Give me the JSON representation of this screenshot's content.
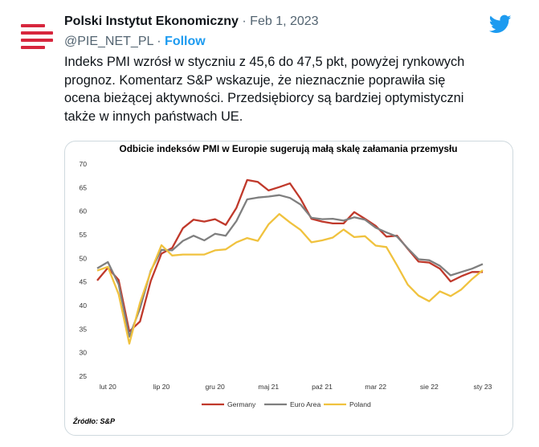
{
  "tweet": {
    "author_name": "Polski Instytut Ekonomiczny",
    "separator": "·",
    "date": "Feb 1, 2023",
    "handle": "@PIE_NET_PL",
    "follow_label": "Follow",
    "text": "Indeks PMI wzrósł w styczniu z 45,6 do 47,5 pkt, powyżej rynkowych\nprognoz. Komentarz S&P wskazuje, że nieznacznie poprawiła się\nocena bieżącej aktywności. Przedsiębiorcy są bardziej optymistyczni\ntakże w innych państwach UE.",
    "logo_icon": "twitter-bird-icon",
    "avatar_icon": "pie-logo-icon",
    "colors": {
      "accent": "#1d9bf0",
      "logo_red": "#d7263d",
      "muted": "#536471"
    }
  },
  "chart_data": {
    "type": "line",
    "title": "Odbicie indeksów PMI w Europie sugerują małą skalę załamania przemysłu",
    "source": "Źródło: S&P",
    "x_tick_labels": [
      "lut 20",
      "lip 20",
      "gru 20",
      "maj 21",
      "paź 21",
      "mar 22",
      "sie 22",
      "sty 23"
    ],
    "y_ticks": [
      25,
      30,
      35,
      40,
      45,
      50,
      55,
      60,
      65,
      70
    ],
    "ylim": [
      25,
      70
    ],
    "grid": false,
    "legend_position": "bottom",
    "x": [
      "sty 20",
      "lut 20",
      "mar 20",
      "kwi 20",
      "maj 20",
      "cze 20",
      "lip 20",
      "sie 20",
      "wrz 20",
      "paź 20",
      "lis 20",
      "gru 20",
      "sty 21",
      "lut 21",
      "mar 21",
      "kwi 21",
      "maj 21",
      "cze 21",
      "lip 21",
      "sie 21",
      "wrz 21",
      "paź 21",
      "lis 21",
      "gru 21",
      "sty 22",
      "lut 22",
      "mar 22",
      "kwi 22",
      "maj 22",
      "cze 22",
      "lip 22",
      "sie 22",
      "wrz 22",
      "paź 22",
      "lis 22",
      "gru 22",
      "sty 23"
    ],
    "series": [
      {
        "name": "Germany",
        "color": "#c0392b",
        "values": [
          45.3,
          48.0,
          45.4,
          34.5,
          36.6,
          45.2,
          51.0,
          52.2,
          56.4,
          58.2,
          57.8,
          58.3,
          57.1,
          60.7,
          66.6,
          66.2,
          64.4,
          65.1,
          65.9,
          62.6,
          58.4,
          57.8,
          57.4,
          57.4,
          59.8,
          58.4,
          56.9,
          54.6,
          54.8,
          52.0,
          49.3,
          49.1,
          47.8,
          45.1,
          46.2,
          47.1,
          47.1
        ]
      },
      {
        "name": "Euro Area",
        "color": "#7f7f7f",
        "values": [
          47.9,
          49.2,
          44.5,
          33.4,
          39.4,
          47.4,
          51.8,
          51.7,
          53.7,
          54.8,
          53.8,
          55.2,
          54.8,
          57.9,
          62.5,
          62.9,
          63.1,
          63.4,
          62.8,
          61.4,
          58.6,
          58.3,
          58.4,
          58.0,
          58.7,
          58.2,
          56.5,
          55.5,
          54.6,
          52.1,
          49.8,
          49.6,
          48.4,
          46.4,
          47.1,
          47.8,
          48.8
        ]
      },
      {
        "name": "Poland",
        "color": "#f0c23e",
        "values": [
          47.4,
          48.2,
          42.4,
          31.9,
          40.6,
          47.2,
          52.8,
          50.6,
          50.8,
          50.8,
          50.8,
          51.7,
          51.9,
          53.4,
          54.3,
          53.7,
          57.2,
          59.4,
          57.6,
          56.0,
          53.4,
          53.8,
          54.4,
          56.1,
          54.5,
          54.7,
          52.7,
          52.4,
          48.5,
          44.4,
          42.1,
          40.9,
          43.0,
          42.0,
          43.4,
          45.6,
          47.5
        ]
      }
    ]
  }
}
